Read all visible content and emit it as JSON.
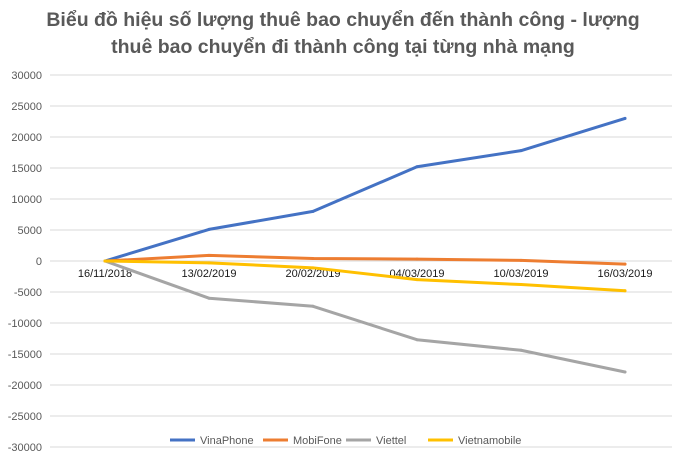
{
  "chart_data": {
    "type": "line",
    "title_lines": [
      "Biểu đồ hiệu số lượng thuê bao chuyển đến thành công - lượng",
      "thuê bao chuyển đi thành công tại từng nhà mạng"
    ],
    "categories": [
      "16/11/2018",
      "13/02/2019",
      "20/02/2019",
      "04/03/2019",
      "10/03/2019",
      "16/03/2019"
    ],
    "yticks": [
      30000,
      25000,
      20000,
      15000,
      10000,
      5000,
      0,
      -5000,
      -10000,
      -15000,
      -20000,
      -25000,
      -30000
    ],
    "ylim": [
      -30000,
      30000
    ],
    "grid": true,
    "legend_position": "bottom",
    "series": [
      {
        "name": "VinaPhone",
        "color": "#4472c4",
        "values": [
          0,
          5100,
          8000,
          15200,
          17800,
          23000
        ]
      },
      {
        "name": "MobiFone",
        "color": "#ed7d31",
        "values": [
          0,
          900,
          400,
          300,
          100,
          -500
        ]
      },
      {
        "name": "Viettel",
        "color": "#a5a5a5",
        "values": [
          0,
          -6000,
          -7300,
          -12700,
          -14400,
          -17900
        ]
      },
      {
        "name": "Vietnamobile",
        "color": "#ffc000",
        "values": [
          0,
          -300,
          -1100,
          -3000,
          -3800,
          -4800
        ]
      }
    ]
  }
}
